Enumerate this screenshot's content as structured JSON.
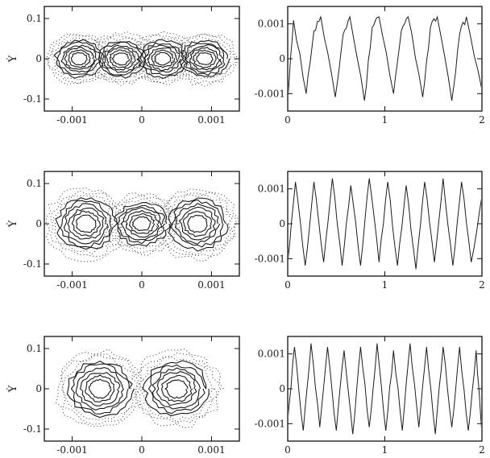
{
  "chart_data": [
    {
      "type": "scatter",
      "panel": "phase-1",
      "ylabel": "Ẏ",
      "x_ticks": [
        "-0.001",
        "0",
        "0.001"
      ],
      "y_ticks": [
        "0.1",
        "0",
        "-0.1"
      ],
      "xlim": [
        -0.0014,
        0.0014
      ],
      "ylim": [
        -0.13,
        0.13
      ],
      "lobes": [
        {
          "cx": -0.0009,
          "rx": 0.00045,
          "ry": 0.06
        },
        {
          "cx": -0.0003,
          "rx": 0.00045,
          "ry": 0.06
        },
        {
          "cx": 0.0003,
          "rx": 0.00045,
          "ry": 0.06
        },
        {
          "cx": 0.0009,
          "rx": 0.00045,
          "ry": 0.06
        }
      ]
    },
    {
      "type": "line",
      "panel": "time-1",
      "x_ticks": [
        "0",
        "1",
        "2"
      ],
      "y_ticks": [
        "0.001",
        "0",
        "-0.001"
      ],
      "xlim": [
        0,
        2
      ],
      "ylim": [
        -0.0015,
        0.0015
      ],
      "series": [
        {
          "x": [
            0,
            0.06,
            0.19,
            0.27,
            0.34,
            0.49,
            0.57,
            0.64,
            0.79,
            0.87,
            0.94,
            1.09,
            1.17,
            1.24,
            1.39,
            1.47,
            1.54,
            1.69,
            1.77,
            1.84,
            2.0
          ],
          "values": [
            -0.0012,
            0.0011,
            -0.001,
            0.0008,
            0.0012,
            -0.0011,
            0.0007,
            0.0012,
            -0.0012,
            0.0009,
            0.0012,
            -0.001,
            0.0008,
            0.0012,
            -0.0011,
            0.0009,
            0.0012,
            -0.0012,
            0.0007,
            0.0012,
            -0.0009
          ]
        }
      ]
    },
    {
      "type": "scatter",
      "panel": "phase-2",
      "ylabel": "Ẏ",
      "x_ticks": [
        "-0.001",
        "0",
        "0.001"
      ],
      "y_ticks": [
        "0.1",
        "0",
        "-0.1"
      ],
      "xlim": [
        -0.0014,
        0.0014
      ],
      "ylim": [
        -0.13,
        0.13
      ],
      "lobes": [
        {
          "cx": -0.0008,
          "rx": 0.00055,
          "ry": 0.085
        },
        {
          "cx": 0.0,
          "rx": 0.0005,
          "ry": 0.07
        },
        {
          "cx": 0.0008,
          "rx": 0.00055,
          "ry": 0.085
        }
      ]
    },
    {
      "type": "line",
      "panel": "time-2",
      "x_ticks": [
        "0",
        "1",
        "2"
      ],
      "y_ticks": [
        "0.001",
        "0",
        "-0.001"
      ],
      "xlim": [
        0,
        2
      ],
      "ylim": [
        -0.0015,
        0.0015
      ],
      "series": [
        {
          "x": [
            0,
            0.08,
            0.18,
            0.27,
            0.37,
            0.46,
            0.56,
            0.65,
            0.75,
            0.84,
            0.94,
            1.03,
            1.13,
            1.22,
            1.32,
            1.41,
            1.51,
            1.6,
            1.7,
            1.79,
            1.89,
            2.0
          ],
          "values": [
            -0.0011,
            0.0012,
            -0.0012,
            0.0012,
            -0.0011,
            0.0013,
            -0.0012,
            0.0011,
            -0.0012,
            0.0013,
            -0.0011,
            0.0012,
            -0.0012,
            0.0011,
            -0.0013,
            0.0012,
            -0.0011,
            0.0013,
            -0.0012,
            0.0012,
            -0.0011,
            0.0008
          ]
        }
      ]
    },
    {
      "type": "scatter",
      "panel": "phase-3",
      "ylabel": "Ẏ",
      "x_ticks": [
        "-0.001",
        "0",
        "0.001"
      ],
      "y_ticks": [
        "0.1",
        "0",
        "-0.1"
      ],
      "xlim": [
        -0.0014,
        0.0014
      ],
      "ylim": [
        -0.13,
        0.13
      ],
      "lobes": [
        {
          "cx": -0.0006,
          "rx": 0.0006,
          "ry": 0.09
        },
        {
          "cx": 0.0005,
          "rx": 0.0006,
          "ry": 0.09
        }
      ]
    },
    {
      "type": "line",
      "panel": "time-3",
      "x_ticks": [
        "0",
        "1",
        "2"
      ],
      "y_ticks": [
        "0.001",
        "0",
        "-0.001"
      ],
      "xlim": [
        0,
        2
      ],
      "ylim": [
        -0.0015,
        0.0015
      ],
      "series": [
        {
          "x": [
            0,
            0.07,
            0.16,
            0.24,
            0.33,
            0.41,
            0.5,
            0.58,
            0.67,
            0.75,
            0.84,
            0.92,
            1.01,
            1.09,
            1.18,
            1.26,
            1.35,
            1.43,
            1.52,
            1.6,
            1.69,
            1.77,
            1.86,
            1.94,
            2.0
          ],
          "values": [
            -0.0009,
            0.0012,
            -0.0012,
            0.0013,
            -0.0011,
            0.0012,
            -0.0012,
            0.0011,
            -0.0013,
            0.0012,
            -0.0011,
            0.0013,
            -0.0012,
            0.0011,
            -0.0012,
            0.0013,
            -0.0011,
            0.0012,
            -0.0013,
            0.0012,
            -0.0011,
            0.0012,
            -0.0012,
            0.0011,
            -0.0013
          ]
        }
      ]
    }
  ]
}
